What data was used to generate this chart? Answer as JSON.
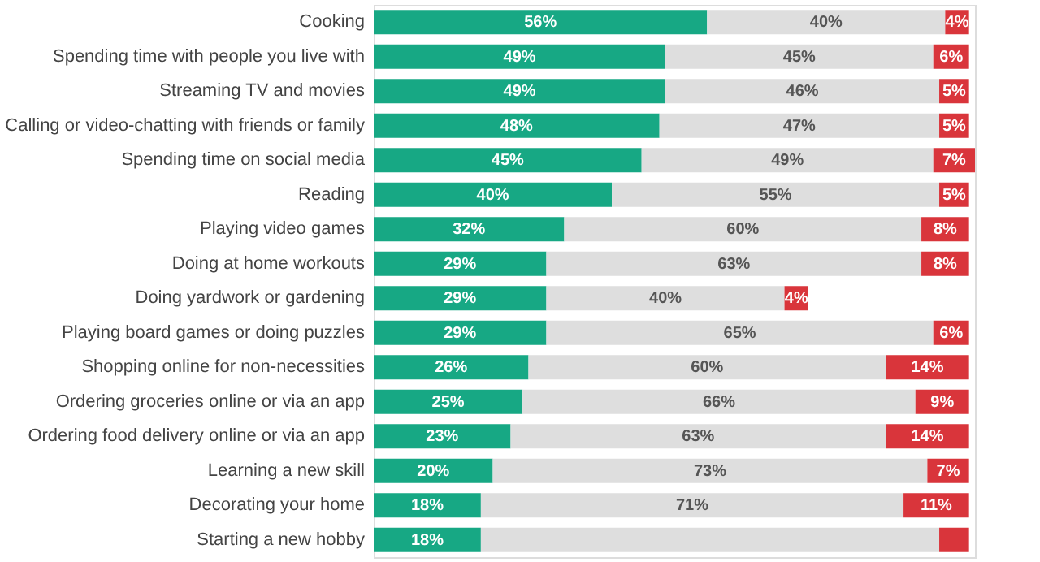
{
  "chart_data": {
    "type": "bar",
    "orientation": "horizontal",
    "stacked": true,
    "grid": false,
    "tick_labels": "y",
    "categories": [
      "Cooking",
      "Spending time with people you live with",
      "Streaming TV and movies",
      "Calling or video-chatting with friends or family",
      "Spending time on social media",
      "Reading",
      "Playing video games",
      "Doing at home workouts",
      "Doing yardwork or gardening",
      "Playing board games or doing puzzles",
      "Shopping online for non-necessities",
      "Ordering groceries online or via an app",
      "Ordering food delivery online or via an app",
      "Learning a new skill",
      "Decorating your home",
      "Starting a new hobby"
    ],
    "series": [
      {
        "color": "#17a884",
        "values": [
          56,
          49,
          49,
          48,
          45,
          40,
          32,
          29,
          29,
          29,
          26,
          25,
          23,
          20,
          18,
          18
        ],
        "value_labels": [
          "56%",
          "49%",
          "49%",
          "48%",
          "45%",
          "40%",
          "32%",
          "29%",
          "29%",
          "29%",
          "26%",
          "25%",
          "23%",
          "20%",
          "18%",
          "18%"
        ]
      },
      {
        "color": "#dedede",
        "values": [
          40,
          45,
          46,
          47,
          49,
          55,
          60,
          63,
          40,
          65,
          60,
          66,
          63,
          73,
          71,
          77
        ],
        "value_labels": [
          "40%",
          "45%",
          "46%",
          "47%",
          "49%",
          "55%",
          "60%",
          "63%",
          "40%",
          "65%",
          "60%",
          "66%",
          "63%",
          "73%",
          "71%",
          null
        ]
      },
      {
        "color": "#d9353b",
        "values": [
          4,
          6,
          5,
          5,
          7,
          5,
          8,
          8,
          4,
          6,
          14,
          9,
          14,
          7,
          11,
          5
        ],
        "value_labels": [
          "4%",
          "6%",
          "5%",
          "5%",
          "7%",
          "5%",
          "8%",
          "8%",
          "4%",
          "6%",
          "14%",
          "9%",
          "14%",
          "7%",
          "11%",
          null
        ]
      }
    ]
  }
}
